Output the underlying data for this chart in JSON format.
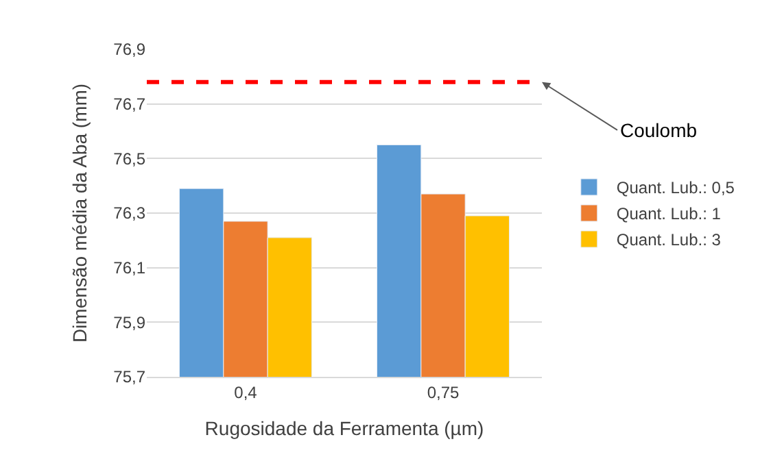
{
  "chart_data": {
    "type": "bar",
    "xlabel": "Rugosidade da Ferramenta (µm)",
    "ylabel": "Dimensão média da Aba (mm)",
    "categories": [
      "0,4",
      "0,75"
    ],
    "series": [
      {
        "name": "Quant. Lub.: 0,5",
        "color": "#5b9bd5",
        "values": [
          76.39,
          76.55
        ]
      },
      {
        "name": "Quant. Lub.: 1",
        "color": "#ed7d31",
        "values": [
          76.27,
          76.37
        ]
      },
      {
        "name": "Quant. Lub.: 3",
        "color": "#ffc000",
        "values": [
          76.21,
          76.29
        ]
      }
    ],
    "ylim": [
      75.7,
      76.9
    ],
    "yticks": [
      {
        "value": 75.7,
        "label": "75,7"
      },
      {
        "value": 75.9,
        "label": "75,9"
      },
      {
        "value": 76.1,
        "label": "76,1"
      },
      {
        "value": 76.3,
        "label": "76,3"
      },
      {
        "value": 76.5,
        "label": "76,5"
      },
      {
        "value": 76.7,
        "label": "76,7"
      },
      {
        "value": 76.9,
        "label": "76,9"
      }
    ],
    "ref_lines": [
      {
        "axis": "y",
        "value": 76.78,
        "label": "Coulomb",
        "color": "#ff0000",
        "line_style": "dashed"
      }
    ],
    "grid": "y",
    "legend": "right"
  }
}
